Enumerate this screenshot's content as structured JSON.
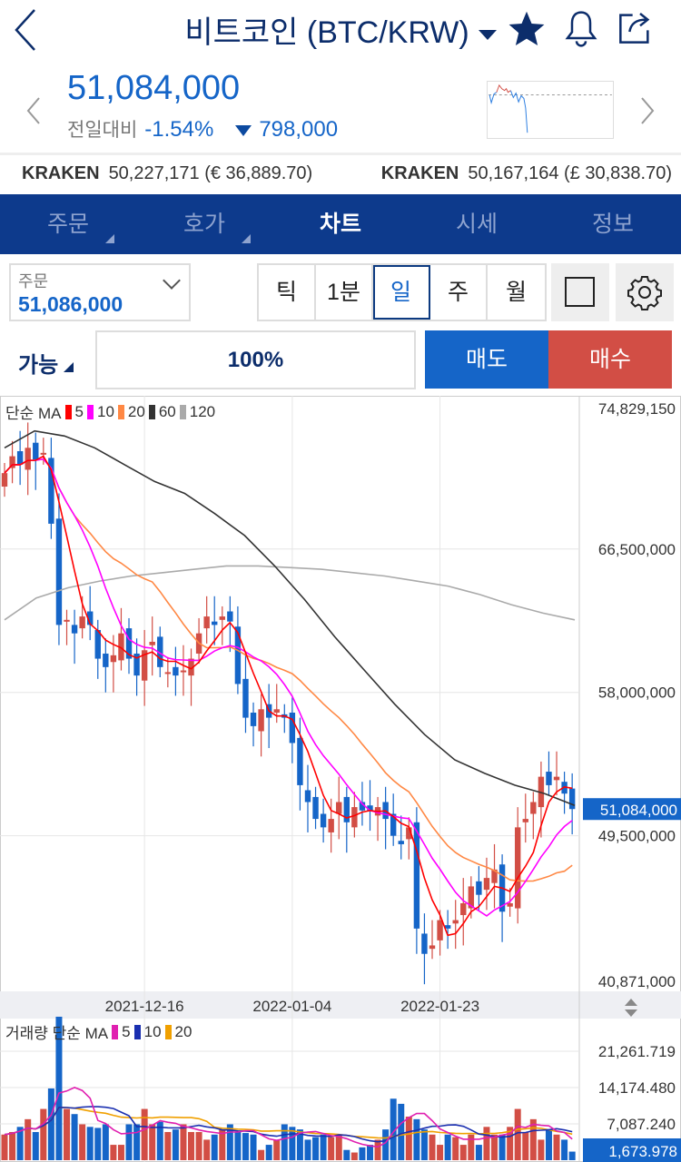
{
  "header": {
    "title": "비트코인 (BTC/KRW)"
  },
  "quote": {
    "price": "51,084,000",
    "change_label": "전일대비",
    "change_pct": "-1.54%",
    "change_amt": "798,000"
  },
  "exchanges": [
    {
      "name": "KRAKEN",
      "value": "50,227,171 (€ 36,889.70)"
    },
    {
      "name": "KRAKEN",
      "value": "50,167,164 (£ 30,838.70)"
    }
  ],
  "tabs": [
    {
      "label": "주문"
    },
    {
      "label": "호가"
    },
    {
      "label": "차트",
      "active": true
    },
    {
      "label": "시세"
    },
    {
      "label": "정보"
    }
  ],
  "order": {
    "label": "주문",
    "value": "51,086,000"
  },
  "periods": [
    {
      "label": "틱"
    },
    {
      "label": "1분"
    },
    {
      "label": "일",
      "active": true
    },
    {
      "label": "주"
    },
    {
      "label": "월"
    }
  ],
  "trade": {
    "avail_label": "가능",
    "percent": "100%",
    "sell": "매도",
    "buy": "매수"
  },
  "colors": {
    "up": "#d24e45",
    "down": "#1565c8",
    "nav": "#0d3a8c"
  },
  "chart_data": {
    "type": "candlestick",
    "price_legend": {
      "label": "단순 MA",
      "periods": [
        "5",
        "10",
        "20",
        "60",
        "120"
      ],
      "colors": [
        "#ff0000",
        "#ff00ff",
        "#ff8844",
        "#333333",
        "#aaaaaa"
      ]
    },
    "volume_legend": {
      "label": "거래량 단순 MA",
      "periods": [
        "5",
        "10",
        "20"
      ],
      "colors": [
        "#e020b0",
        "#1a2fb0",
        "#f0a000"
      ]
    },
    "y_ticks": [
      "74,829,150",
      "66,500,000",
      "58,000,000",
      "49,500,000",
      "40,871,000"
    ],
    "y_tick_values": [
      74.82915,
      66.5,
      58.0,
      49.5,
      40.871
    ],
    "current_price": "51,084,000",
    "x_ticks": [
      "2021-12-16",
      "2022-01-04",
      "2022-01-23"
    ],
    "x_tick_index": [
      18,
      37,
      56
    ],
    "vol_ticks": [
      "21,261.719",
      "14,174.480",
      "7,087.240"
    ],
    "vol_tick_values": [
      21.261719,
      14.17448,
      7.08724
    ],
    "current_volume": "1,673.978",
    "closes": [
      71.0,
      72.0,
      71.5,
      72.5,
      71.8,
      72.2,
      68.0,
      62.0,
      62.3,
      61.5,
      62.5,
      62.0,
      60.0,
      59.5,
      60.2,
      61.5,
      60.0,
      59.0,
      60.5,
      61.0,
      59.5,
      59.2,
      59.0,
      59.3,
      60.0,
      61.5,
      62.5,
      62.0,
      62.5,
      62.2,
      58.5,
      56.5,
      56.0,
      57.0,
      56.5,
      57.0,
      56.5,
      55.0,
      52.5,
      51.5,
      50.5,
      50.0,
      50.5,
      51.5,
      50.3,
      51.2,
      51.0,
      51.0,
      51.2,
      50.5,
      49.5,
      49.0,
      50.0,
      44.0,
      42.5,
      43.0,
      44.5,
      44.0,
      44.5,
      45.5,
      46.5,
      46.0,
      47.0,
      47.5,
      45.0,
      45.5,
      50.0,
      50.5,
      51.5,
      53.0,
      52.5,
      53.0,
      52.0,
      51.084
    ],
    "volumes": [
      5,
      5.5,
      6.5,
      8,
      5.5,
      10,
      14,
      28,
      10,
      9,
      7,
      6.5,
      6.3,
      7,
      3,
      3,
      7,
      7,
      10,
      7,
      7.5,
      5.5,
      6,
      7,
      5.5,
      5.5,
      4,
      5,
      6,
      7,
      5.5,
      5.3,
      5,
      2,
      3,
      4,
      7,
      6.5,
      6,
      4,
      4.5,
      5,
      4.5,
      5,
      2,
      1.5,
      2.5,
      3,
      4,
      6,
      12,
      11,
      8.5,
      8,
      6,
      5,
      3,
      5,
      4.5,
      3,
      5,
      3,
      6.5,
      5,
      5,
      6.5,
      10,
      5.5,
      8,
      4,
      6,
      5,
      4,
      1.674
    ],
    "ma60": [
      72.5,
      73.5,
      73.2,
      72.5,
      71.5,
      70.5,
      69.8,
      68.6,
      67.3,
      65.5,
      63.5,
      61.3,
      59.3,
      57.3,
      55.5,
      54.0,
      53.2,
      52.5,
      52.0,
      51.3
    ],
    "ma120": [
      62.3,
      63.6,
      64.2,
      64.6,
      64.9,
      65.1,
      65.3,
      65.5,
      65.5,
      65.4,
      65.3,
      65.1,
      64.9,
      64.6,
      64.3,
      63.8,
      63.2,
      62.7,
      62.3
    ]
  }
}
